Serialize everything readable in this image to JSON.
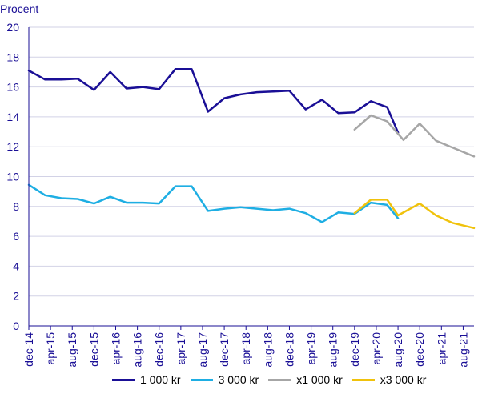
{
  "chart_data": {
    "type": "line",
    "ylabel": "Procent",
    "ylim": [
      0,
      20
    ],
    "yticks": [
      0,
      2,
      4,
      6,
      8,
      10,
      12,
      14,
      16,
      18,
      20
    ],
    "grid": true,
    "legend_placement": "bottom",
    "x": [
      "dec-14",
      "jan-15",
      "feb-15",
      "mar-15",
      "apr-15",
      "maj-15",
      "jun-15",
      "jul-15",
      "aug-15",
      "sep-15",
      "okt-15",
      "nov-15",
      "dec-15",
      "jan-16",
      "feb-16",
      "mar-16",
      "apr-16",
      "maj-16",
      "jun-16",
      "jul-16",
      "aug-16",
      "sep-16",
      "okt-16",
      "nov-16",
      "dec-16",
      "jan-17",
      "feb-17",
      "mar-17",
      "apr-17",
      "maj-17",
      "jun-17",
      "jul-17",
      "aug-17",
      "sep-17",
      "okt-17",
      "nov-17",
      "dec-17",
      "jan-18",
      "feb-18",
      "mar-18",
      "apr-18",
      "maj-18",
      "jun-18",
      "jul-18",
      "aug-18",
      "sep-18",
      "okt-18",
      "nov-18",
      "dec-18",
      "jan-19",
      "feb-19",
      "mar-19",
      "apr-19",
      "maj-19",
      "jun-19",
      "jul-19",
      "aug-19",
      "sep-19",
      "okt-19",
      "nov-19",
      "dec-19",
      "jan-20",
      "feb-20",
      "mar-20",
      "apr-20",
      "maj-20",
      "jun-20",
      "jul-20",
      "aug-20",
      "sep-20",
      "okt-20",
      "nov-20",
      "dec-20",
      "jan-21",
      "feb-21",
      "mar-21",
      "apr-21",
      "maj-21",
      "jun-21",
      "jul-21",
      "aug-21",
      "sep-21",
      "okt-21"
    ],
    "xticks": [
      "dec-14",
      "apr-15",
      "aug-15",
      "dec-15",
      "apr-16",
      "aug-16",
      "dec-16",
      "apr-17",
      "aug-17",
      "dec-17",
      "apr-18",
      "aug-18",
      "dec-18",
      "apr-19",
      "aug-19",
      "dec-19",
      "apr-20",
      "aug-20",
      "dec-20",
      "apr-21",
      "aug-21"
    ],
    "series": [
      {
        "name": "1 000 kr",
        "color": "#1a0f96",
        "points": [
          [
            "dec-14",
            17.1
          ],
          [
            "mar-15",
            16.5
          ],
          [
            "jun-15",
            16.5
          ],
          [
            "sep-15",
            16.55
          ],
          [
            "dec-15",
            15.8
          ],
          [
            "mar-16",
            17.0
          ],
          [
            "jun-16",
            15.9
          ],
          [
            "sep-16",
            16.0
          ],
          [
            "dec-16",
            15.85
          ],
          [
            "mar-17",
            17.2
          ],
          [
            "jun-17",
            17.2
          ],
          [
            "sep-17",
            14.35
          ],
          [
            "dec-17",
            15.25
          ],
          [
            "mar-18",
            15.5
          ],
          [
            "jun-18",
            15.65
          ],
          [
            "sep-18",
            15.7
          ],
          [
            "dec-18",
            15.75
          ],
          [
            "mar-19",
            14.5
          ],
          [
            "jun-19",
            15.15
          ],
          [
            "sep-19",
            14.25
          ],
          [
            "dec-19",
            14.3
          ],
          [
            "mar-20",
            15.05
          ],
          [
            "jun-20",
            14.65
          ],
          [
            "aug-20",
            12.95
          ]
        ]
      },
      {
        "name": "3 000 kr",
        "color": "#1eaee3",
        "points": [
          [
            "dec-14",
            9.45
          ],
          [
            "mar-15",
            8.75
          ],
          [
            "jun-15",
            8.55
          ],
          [
            "sep-15",
            8.5
          ],
          [
            "dec-15",
            8.2
          ],
          [
            "mar-16",
            8.65
          ],
          [
            "jun-16",
            8.25
          ],
          [
            "sep-16",
            8.25
          ],
          [
            "dec-16",
            8.2
          ],
          [
            "mar-17",
            9.35
          ],
          [
            "jun-17",
            9.35
          ],
          [
            "sep-17",
            7.7
          ],
          [
            "dec-17",
            7.85
          ],
          [
            "mar-18",
            7.95
          ],
          [
            "jun-18",
            7.85
          ],
          [
            "sep-18",
            7.75
          ],
          [
            "dec-18",
            7.85
          ],
          [
            "mar-19",
            7.55
          ],
          [
            "jun-19",
            6.95
          ],
          [
            "sep-19",
            7.6
          ],
          [
            "dec-19",
            7.5
          ],
          [
            "mar-20",
            8.25
          ],
          [
            "jun-20",
            8.1
          ],
          [
            "aug-20",
            7.2
          ]
        ]
      },
      {
        "name": "x1 000 kr",
        "color": "#a6a6a6",
        "points": [
          [
            "dec-19",
            13.15
          ],
          [
            "mar-20",
            14.1
          ],
          [
            "jun-20",
            13.7
          ],
          [
            "sep-20",
            12.45
          ],
          [
            "dec-20",
            13.55
          ],
          [
            "mar-21",
            12.4
          ],
          [
            "jun-21",
            11.95
          ],
          [
            "okt-21",
            11.35
          ]
        ]
      },
      {
        "name": "x3 000 kr",
        "color": "#f0c20c",
        "points": [
          [
            "dec-19",
            7.55
          ],
          [
            "mar-20",
            8.45
          ],
          [
            "jun-20",
            8.45
          ],
          [
            "aug-20",
            7.4
          ],
          [
            "dec-20",
            8.2
          ],
          [
            "mar-21",
            7.4
          ],
          [
            "jun-21",
            6.9
          ],
          [
            "okt-21",
            6.55
          ]
        ]
      }
    ]
  }
}
